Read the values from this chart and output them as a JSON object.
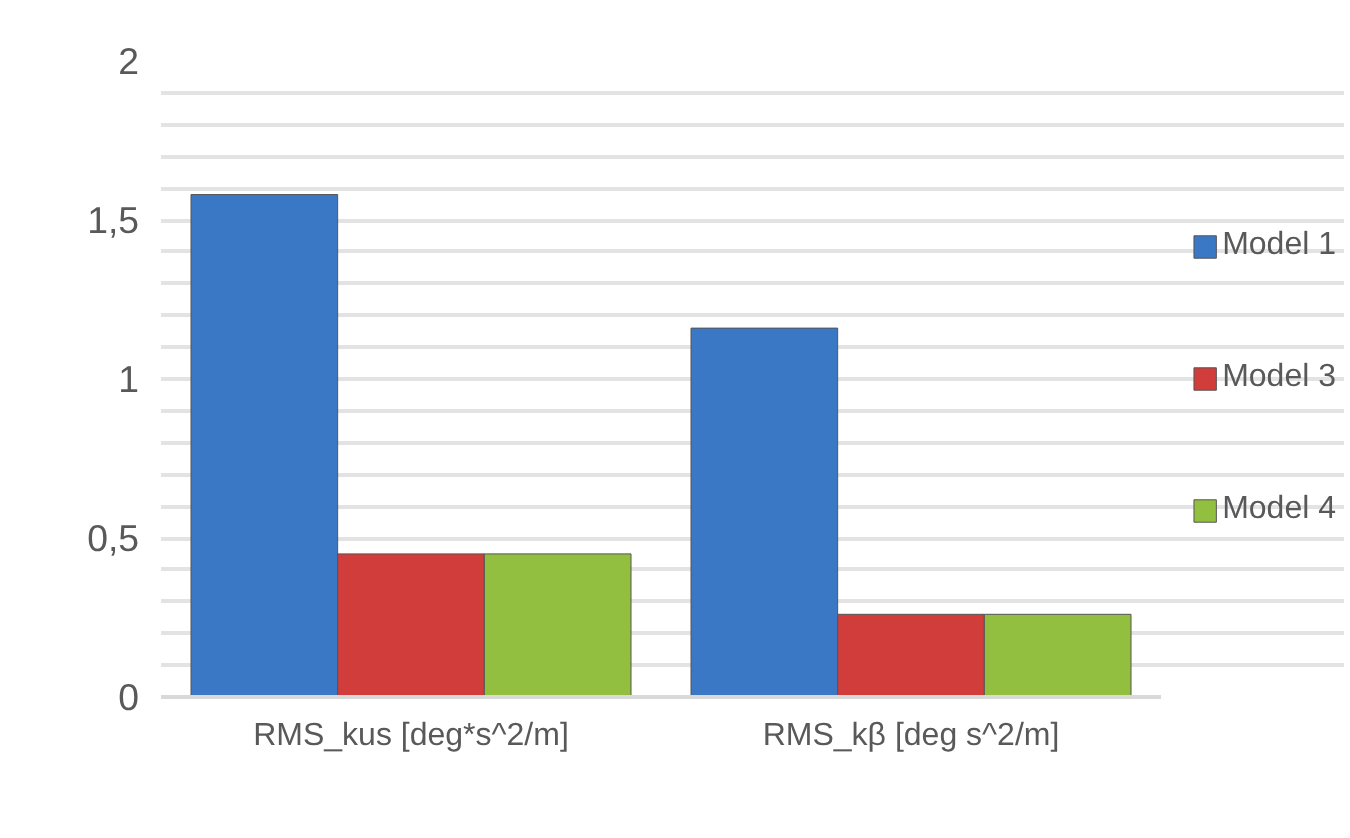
{
  "chart_data": {
    "type": "bar",
    "categories": [
      "RMS_kus [deg*s^2/m]",
      "RMS_kβ [deg s^2/m]"
    ],
    "series": [
      {
        "name": "Model 1",
        "color": "#3a78c6",
        "values": [
          1.58,
          1.16
        ]
      },
      {
        "name": "Model 3",
        "color": "#d13d3a",
        "values": [
          0.45,
          0.26
        ]
      },
      {
        "name": "Model 4",
        "color": "#93bf40",
        "values": [
          0.45,
          0.26
        ]
      }
    ],
    "ylim": [
      0,
      2
    ],
    "yticks": [
      0,
      {
        "value": 0.1,
        "label": null
      },
      {
        "value": 0.2,
        "label": null
      },
      {
        "value": 0.3,
        "label": null
      },
      {
        "value": 0.4,
        "label": null
      },
      {
        "value": 0.5,
        "label": "0,5"
      },
      {
        "value": 0.6,
        "label": null
      },
      {
        "value": 0.7,
        "label": null
      },
      {
        "value": 0.8,
        "label": null
      },
      {
        "value": 0.9,
        "label": null
      },
      1,
      {
        "value": 1.1,
        "label": null
      },
      {
        "value": 1.2,
        "label": null
      },
      {
        "value": 1.3,
        "label": null
      },
      {
        "value": 1.4,
        "label": null
      },
      {
        "value": 1.5,
        "label": "1,5"
      },
      {
        "value": 1.6,
        "label": null
      },
      {
        "value": 1.7,
        "label": null
      },
      {
        "value": 1.8,
        "label": null
      },
      {
        "value": 1.9,
        "label": null
      },
      2
    ],
    "grid": "y",
    "legend": "right"
  }
}
